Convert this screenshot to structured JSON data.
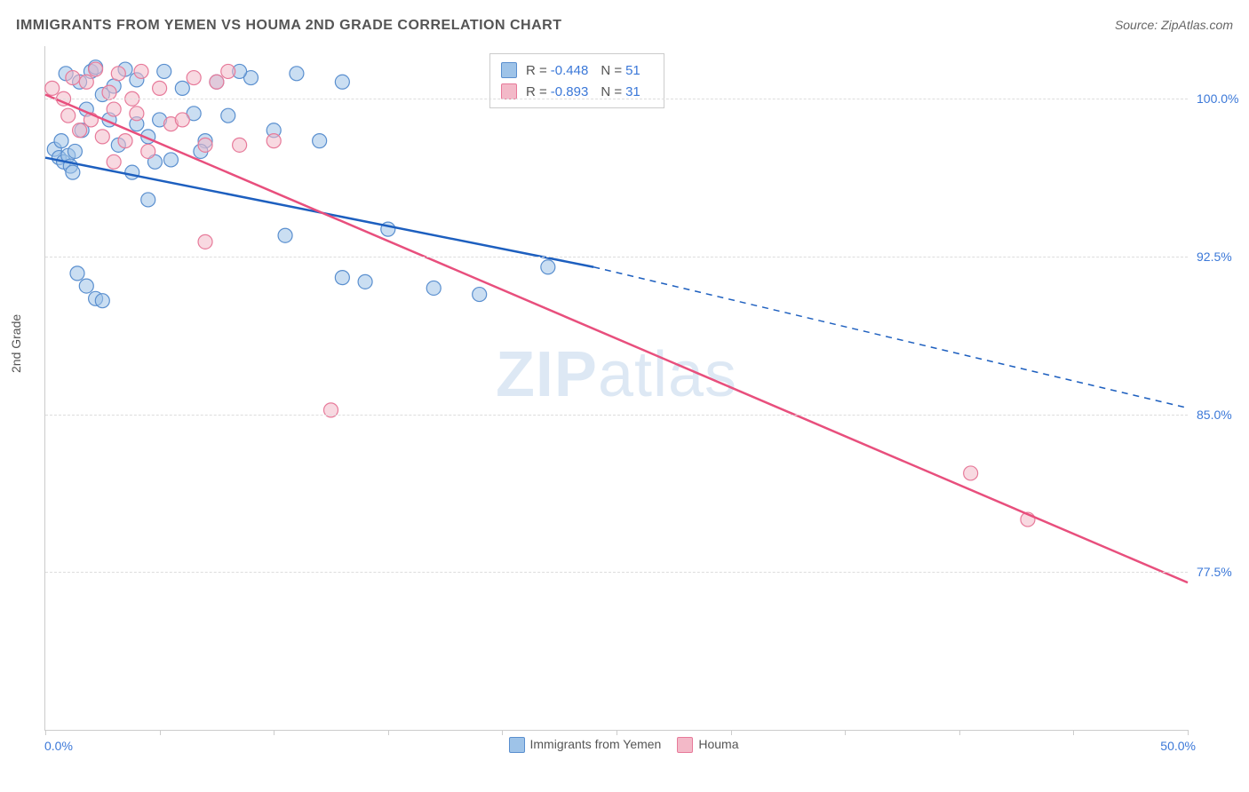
{
  "title": "IMMIGRANTS FROM YEMEN VS HOUMA 2ND GRADE CORRELATION CHART",
  "source": "Source: ZipAtlas.com",
  "y_axis_label": "2nd Grade",
  "watermark": {
    "bold": "ZIP",
    "rest": "atlas"
  },
  "chart": {
    "type": "scatter",
    "background_color": "#ffffff",
    "grid_color": "#dddddd",
    "axis_color": "#cccccc",
    "tick_text_color": "#3b78d8",
    "title_color": "#555555",
    "xlim": [
      0,
      50
    ],
    "ylim": [
      70,
      102.5
    ],
    "x_ticks": [
      0,
      5,
      10,
      15,
      20,
      25,
      30,
      35,
      40,
      45,
      50
    ],
    "x_tick_labels": {
      "0": "0.0%",
      "50": "50.0%"
    },
    "y_gridlines": [
      77.5,
      85.0,
      92.5,
      100.0
    ],
    "y_tick_labels": [
      "77.5%",
      "85.0%",
      "92.5%",
      "100.0%"
    ],
    "marker_radius": 8,
    "marker_opacity": 0.55,
    "line_width": 2.5,
    "series": [
      {
        "name": "Immigrants from Yemen",
        "fill_color": "#9ec3e8",
        "stroke_color": "#5a8fcf",
        "line_color": "#1d5fbf",
        "R": "-0.448",
        "N": "51",
        "trend": {
          "x1": 0,
          "y1": 97.2,
          "x2": 24,
          "y2": 92.0,
          "dash_to_x": 50,
          "dash_to_y": 85.3
        },
        "points": [
          [
            0.4,
            97.6
          ],
          [
            0.6,
            97.2
          ],
          [
            0.8,
            97.0
          ],
          [
            1.0,
            97.3
          ],
          [
            1.1,
            96.8
          ],
          [
            1.2,
            96.5
          ],
          [
            1.3,
            97.5
          ],
          [
            0.9,
            101.2
          ],
          [
            1.5,
            100.8
          ],
          [
            2.0,
            101.3
          ],
          [
            1.8,
            99.5
          ],
          [
            2.2,
            101.5
          ],
          [
            2.5,
            100.2
          ],
          [
            3.0,
            100.6
          ],
          [
            3.5,
            101.4
          ],
          [
            4.0,
            98.8
          ],
          [
            4.0,
            100.9
          ],
          [
            4.5,
            98.2
          ],
          [
            5.0,
            99.0
          ],
          [
            5.5,
            97.1
          ],
          [
            6.0,
            100.5
          ],
          [
            6.5,
            99.3
          ],
          [
            7.0,
            98.0
          ],
          [
            7.5,
            100.8
          ],
          [
            8.0,
            99.2
          ],
          [
            9.0,
            101.0
          ],
          [
            10.0,
            98.5
          ],
          [
            11.0,
            101.2
          ],
          [
            12.0,
            98.0
          ],
          [
            13.0,
            100.8
          ],
          [
            1.4,
            91.7
          ],
          [
            1.8,
            91.1
          ],
          [
            2.2,
            90.5
          ],
          [
            2.5,
            90.4
          ],
          [
            4.5,
            95.2
          ],
          [
            4.8,
            97.0
          ],
          [
            10.5,
            93.5
          ],
          [
            13.0,
            91.5
          ],
          [
            14.0,
            91.3
          ],
          [
            15.0,
            93.8
          ],
          [
            17.0,
            91.0
          ],
          [
            19.0,
            90.7
          ],
          [
            22.0,
            92.0
          ],
          [
            3.2,
            97.8
          ],
          [
            3.8,
            96.5
          ],
          [
            2.8,
            99.0
          ],
          [
            1.6,
            98.5
          ],
          [
            0.7,
            98.0
          ],
          [
            5.2,
            101.3
          ],
          [
            6.8,
            97.5
          ],
          [
            8.5,
            101.3
          ]
        ]
      },
      {
        "name": "Houma",
        "fill_color": "#f3b9c8",
        "stroke_color": "#e77a9a",
        "line_color": "#e84f7d",
        "R": "-0.893",
        "N": "31",
        "trend": {
          "x1": 0,
          "y1": 100.2,
          "x2": 50,
          "y2": 77.0
        },
        "points": [
          [
            0.3,
            100.5
          ],
          [
            0.8,
            100.0
          ],
          [
            1.0,
            99.2
          ],
          [
            1.2,
            101.0
          ],
          [
            1.5,
            98.5
          ],
          [
            1.8,
            100.8
          ],
          [
            2.0,
            99.0
          ],
          [
            2.2,
            101.4
          ],
          [
            2.5,
            98.2
          ],
          [
            2.8,
            100.3
          ],
          [
            3.0,
            99.5
          ],
          [
            3.2,
            101.2
          ],
          [
            3.5,
            98.0
          ],
          [
            3.8,
            100.0
          ],
          [
            4.0,
            99.3
          ],
          [
            4.2,
            101.3
          ],
          [
            4.5,
            97.5
          ],
          [
            5.0,
            100.5
          ],
          [
            5.5,
            98.8
          ],
          [
            6.0,
            99.0
          ],
          [
            6.5,
            101.0
          ],
          [
            7.0,
            97.8
          ],
          [
            7.5,
            100.8
          ],
          [
            8.0,
            101.3
          ],
          [
            8.5,
            97.8
          ],
          [
            10.0,
            98.0
          ],
          [
            7.0,
            93.2
          ],
          [
            12.5,
            85.2
          ],
          [
            40.5,
            82.2
          ],
          [
            43.0,
            80.0
          ],
          [
            3.0,
            97.0
          ]
        ]
      }
    ]
  },
  "legend_bottom": [
    {
      "label": "Immigrants from Yemen",
      "fill": "#9ec3e8",
      "stroke": "#5a8fcf"
    },
    {
      "label": "Houma",
      "fill": "#f3b9c8",
      "stroke": "#e77a9a"
    }
  ]
}
